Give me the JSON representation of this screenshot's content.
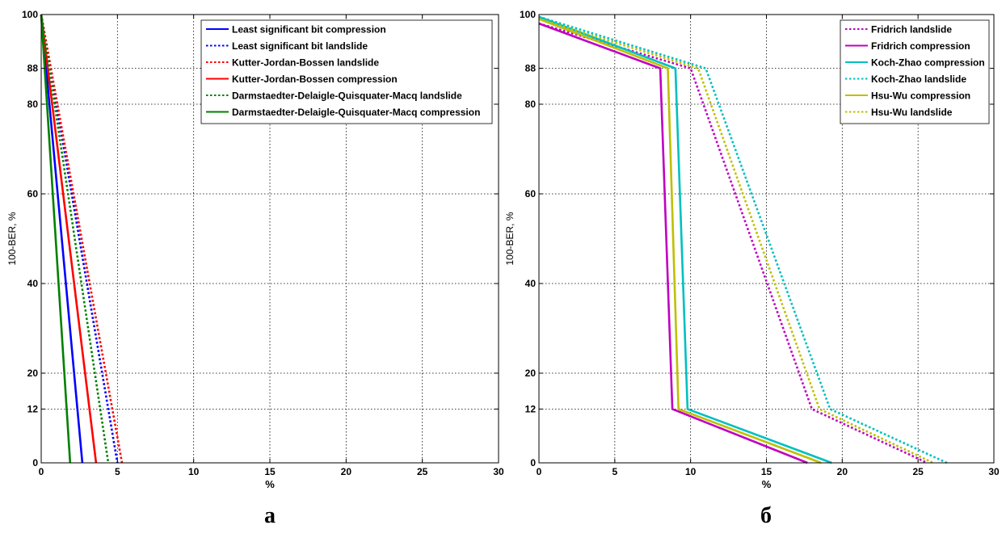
{
  "chart_data": [
    {
      "type": "line",
      "caption": "а",
      "xlabel": "%",
      "ylabel": "100-BER, %",
      "xlim": [
        0,
        30
      ],
      "ylim": [
        0,
        100
      ],
      "xticks": [
        0,
        5,
        10,
        15,
        20,
        25,
        30
      ],
      "yticks": [
        0,
        12,
        20,
        40,
        60,
        80,
        88,
        100
      ],
      "grid": true,
      "legend_position": "top-right",
      "series": [
        {
          "name": "Least significant bit compression",
          "color": "#0000ff",
          "dash": "solid",
          "x": [
            0,
            2.7
          ],
          "y": [
            100,
            0
          ]
        },
        {
          "name": "Least significant bit landslide",
          "color": "#0000ff",
          "dash": "dotted",
          "x": [
            0,
            5.0
          ],
          "y": [
            100,
            0
          ]
        },
        {
          "name": "Kutter-Jordan-Bossen landslide",
          "color": "#ff0000",
          "dash": "dotted",
          "x": [
            0,
            5.3
          ],
          "y": [
            100,
            0
          ]
        },
        {
          "name": "Kutter-Jordan-Bossen compression",
          "color": "#ff0000",
          "dash": "solid",
          "x": [
            0,
            3.6
          ],
          "y": [
            100,
            0
          ]
        },
        {
          "name": "Darmstaedter-Delaigle-Quisquater-Macq landslide",
          "color": "#008000",
          "dash": "dotted",
          "x": [
            0,
            4.4
          ],
          "y": [
            100,
            0
          ]
        },
        {
          "name": "Darmstaedter-Delaigle-Quisquater-Macq compression",
          "color": "#008000",
          "dash": "solid",
          "x": [
            0,
            1.9
          ],
          "y": [
            100,
            0
          ]
        }
      ]
    },
    {
      "type": "line",
      "caption": "б",
      "xlabel": "%",
      "ylabel": "100-BER, %",
      "xlim": [
        0,
        30
      ],
      "ylim": [
        0,
        100
      ],
      "xticks": [
        0,
        5,
        10,
        15,
        20,
        25,
        30
      ],
      "yticks": [
        0,
        12,
        20,
        40,
        60,
        80,
        88,
        100
      ],
      "grid": true,
      "legend_position": "top-right",
      "series": [
        {
          "name": "Fridrich landslide",
          "color": "#c000c0",
          "dash": "dotted",
          "x": [
            0,
            10,
            18,
            25.6
          ],
          "y": [
            98,
            88,
            12,
            0
          ]
        },
        {
          "name": "Fridrich compression",
          "color": "#c000c0",
          "dash": "solid",
          "x": [
            0,
            8,
            8.8,
            17.7
          ],
          "y": [
            98,
            88,
            12,
            0
          ]
        },
        {
          "name": "Koch-Zhao compression",
          "color": "#00c0c0",
          "dash": "solid",
          "x": [
            0,
            9,
            9.8,
            19.3
          ],
          "y": [
            99.5,
            88,
            12,
            0
          ]
        },
        {
          "name": "Koch-Zhao landslide",
          "color": "#00c0c0",
          "dash": "dotted",
          "x": [
            0,
            11,
            19.2,
            26.9
          ],
          "y": [
            99.5,
            88,
            12,
            0
          ]
        },
        {
          "name": "Hsu-Wu compression",
          "color": "#bfbf00",
          "dash": "solid",
          "x": [
            0,
            8.5,
            9.2,
            18.6
          ],
          "y": [
            99,
            88,
            12,
            0
          ]
        },
        {
          "name": "Hsu-Wu landslide",
          "color": "#bfbf00",
          "dash": "dotted",
          "x": [
            0,
            10.5,
            18.5,
            26.0
          ],
          "y": [
            99,
            88,
            12,
            0
          ]
        }
      ]
    }
  ]
}
